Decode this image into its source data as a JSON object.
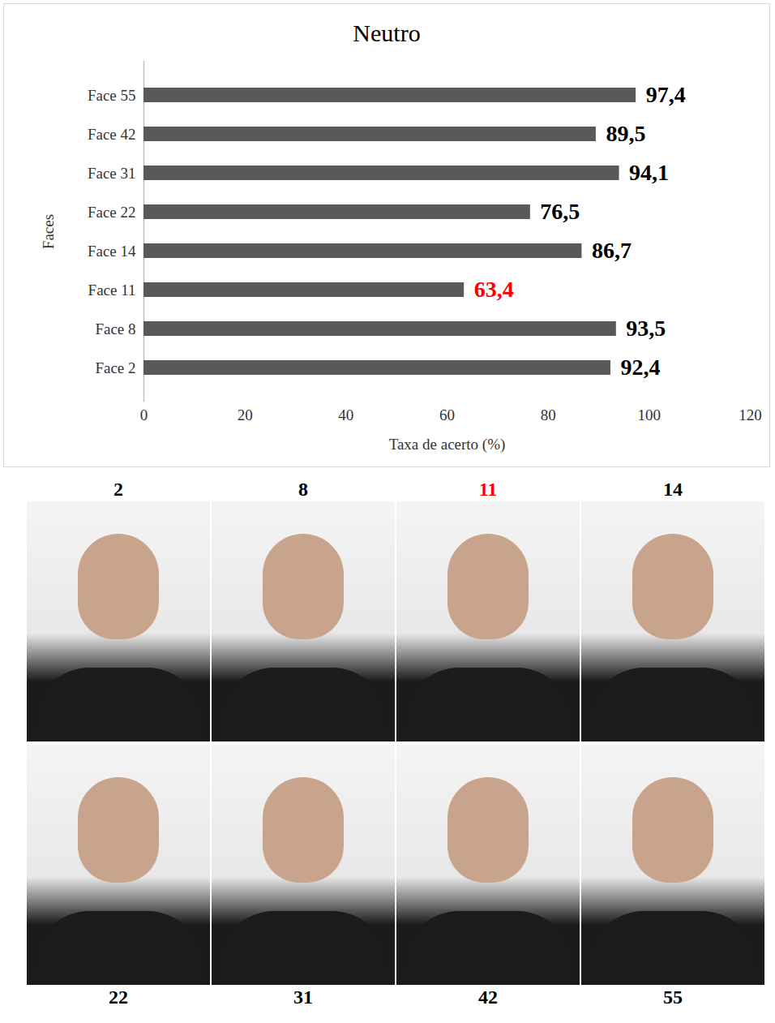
{
  "chart_data": {
    "type": "bar",
    "orientation": "horizontal",
    "title": "Neutro",
    "x_label": "Taxa de acerto (%)",
    "y_label": "Faces",
    "categories": [
      "Face 2",
      "Face 8",
      "Face 11",
      "Face 14",
      "Face 22",
      "Face 31",
      "Face 42",
      "Face 55"
    ],
    "values": [
      92.4,
      93.5,
      63.4,
      86.7,
      76.5,
      94.1,
      89.5,
      97.4
    ],
    "value_labels": [
      "92,4",
      "93,5",
      "63,4",
      "86,7",
      "76,5",
      "94,1",
      "89,5",
      "97,4"
    ],
    "value_label_colors": [
      "#000000",
      "#000000",
      "#ff0000",
      "#000000",
      "#000000",
      "#000000",
      "#000000",
      "#000000"
    ],
    "color": "#595959",
    "data_labels": true,
    "grid": false,
    "xlim": [
      0,
      120
    ],
    "xticks": [
      0,
      20,
      40,
      60,
      80,
      100,
      120
    ]
  },
  "photo_grid": {
    "rows": [
      [
        {
          "caption": "2",
          "color": "#000000"
        },
        {
          "caption": "8",
          "color": "#000000"
        },
        {
          "caption": "11",
          "color": "#ff0000"
        },
        {
          "caption": "14",
          "color": "#000000"
        }
      ],
      [
        {
          "caption": "22",
          "color": "#000000"
        },
        {
          "caption": "31",
          "color": "#000000"
        },
        {
          "caption": "42",
          "color": "#000000"
        },
        {
          "caption": "55",
          "color": "#000000"
        }
      ]
    ]
  }
}
